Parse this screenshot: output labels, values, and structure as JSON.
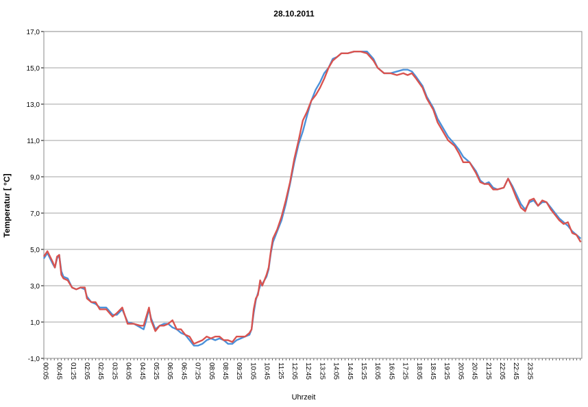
{
  "chart_data": {
    "type": "line",
    "title": "28.10.2011",
    "xlabel": "Uhrzeit",
    "ylabel": "Temperatur [ °C]",
    "ylim": [
      -1.0,
      17.0
    ],
    "yticks": [
      "-1,0",
      "1,0",
      "3,0",
      "5,0",
      "7,0",
      "9,0",
      "11,0",
      "13,0",
      "15,0",
      "17,0"
    ],
    "grid": true,
    "legend": "none",
    "x_tick_labels": [
      "00:05",
      "00:45",
      "01:25",
      "02:05",
      "02:45",
      "03:25",
      "04:05",
      "04:45",
      "05:25",
      "06:05",
      "06:45",
      "07:25",
      "08:05",
      "08:45",
      "09:25",
      "10:05",
      "10:45",
      "11:25",
      "12:05",
      "12:45",
      "13:25",
      "14:05",
      "14:45",
      "15:25",
      "16:05",
      "16:45",
      "17:25",
      "18:05",
      "18:45",
      "19:25",
      "20:05",
      "20:45",
      "21:25",
      "22:05",
      "22:45",
      "23:25"
    ],
    "x_range_hours": [
      0.0833,
      24.0
    ],
    "series": [
      {
        "color": "#4a90d9",
        "points": [
          [
            0.08,
            4.5
          ],
          [
            0.25,
            4.8
          ],
          [
            0.5,
            4.2
          ],
          [
            0.6,
            4.0
          ],
          [
            0.7,
            4.5
          ],
          [
            0.8,
            4.7
          ],
          [
            0.9,
            3.8
          ],
          [
            1.0,
            3.5
          ],
          [
            1.2,
            3.4
          ],
          [
            1.4,
            2.9
          ],
          [
            1.6,
            2.8
          ],
          [
            1.8,
            2.9
          ],
          [
            2.0,
            2.8
          ],
          [
            2.1,
            2.4
          ],
          [
            2.3,
            2.1
          ],
          [
            2.5,
            2.0
          ],
          [
            2.7,
            1.8
          ],
          [
            3.0,
            1.8
          ],
          [
            3.3,
            1.4
          ],
          [
            3.5,
            1.4
          ],
          [
            3.75,
            1.7
          ],
          [
            4.0,
            1.0
          ],
          [
            4.3,
            0.9
          ],
          [
            4.6,
            0.7
          ],
          [
            4.75,
            0.6
          ],
          [
            4.85,
            1.0
          ],
          [
            5.0,
            1.7
          ],
          [
            5.1,
            1.2
          ],
          [
            5.3,
            0.6
          ],
          [
            5.5,
            0.8
          ],
          [
            5.7,
            0.9
          ],
          [
            5.9,
            0.9
          ],
          [
            6.1,
            0.7
          ],
          [
            6.3,
            0.6
          ],
          [
            6.5,
            0.4
          ],
          [
            6.7,
            0.3
          ],
          [
            6.9,
            0.0
          ],
          [
            7.1,
            -0.3
          ],
          [
            7.3,
            -0.3
          ],
          [
            7.5,
            -0.2
          ],
          [
            7.7,
            0.0
          ],
          [
            7.9,
            0.1
          ],
          [
            8.1,
            0.0
          ],
          [
            8.3,
            0.1
          ],
          [
            8.5,
            0.0
          ],
          [
            8.7,
            -0.2
          ],
          [
            8.9,
            -0.2
          ],
          [
            9.1,
            0.0
          ],
          [
            9.3,
            0.1
          ],
          [
            9.5,
            0.2
          ],
          [
            9.7,
            0.3
          ],
          [
            9.8,
            0.6
          ],
          [
            9.9,
            1.5
          ],
          [
            10.0,
            2.2
          ],
          [
            10.1,
            2.6
          ],
          [
            10.2,
            3.0
          ],
          [
            10.3,
            3.1
          ],
          [
            10.5,
            3.5
          ],
          [
            10.6,
            3.9
          ],
          [
            10.7,
            4.8
          ],
          [
            10.8,
            5.4
          ],
          [
            11.0,
            6.0
          ],
          [
            11.2,
            6.6
          ],
          [
            11.4,
            7.5
          ],
          [
            11.6,
            8.6
          ],
          [
            11.8,
            9.8
          ],
          [
            12.0,
            10.8
          ],
          [
            12.2,
            11.5
          ],
          [
            12.4,
            12.4
          ],
          [
            12.6,
            13.2
          ],
          [
            12.8,
            13.8
          ],
          [
            13.0,
            14.2
          ],
          [
            13.2,
            14.7
          ],
          [
            13.4,
            15.0
          ],
          [
            13.6,
            15.5
          ],
          [
            13.8,
            15.6
          ],
          [
            14.0,
            15.8
          ],
          [
            14.3,
            15.8
          ],
          [
            14.6,
            15.9
          ],
          [
            14.9,
            15.9
          ],
          [
            15.2,
            15.9
          ],
          [
            15.5,
            15.5
          ],
          [
            15.7,
            15.0
          ],
          [
            16.0,
            14.7
          ],
          [
            16.3,
            14.7
          ],
          [
            16.6,
            14.8
          ],
          [
            16.9,
            14.9
          ],
          [
            17.1,
            14.9
          ],
          [
            17.3,
            14.8
          ],
          [
            17.5,
            14.5
          ],
          [
            17.8,
            14.0
          ],
          [
            18.0,
            13.4
          ],
          [
            18.3,
            12.8
          ],
          [
            18.5,
            12.2
          ],
          [
            18.8,
            11.6
          ],
          [
            19.0,
            11.2
          ],
          [
            19.3,
            10.8
          ],
          [
            19.5,
            10.5
          ],
          [
            19.7,
            10.1
          ],
          [
            20.0,
            9.8
          ],
          [
            20.3,
            9.3
          ],
          [
            20.5,
            8.8
          ],
          [
            20.7,
            8.6
          ],
          [
            20.9,
            8.7
          ],
          [
            21.1,
            8.4
          ],
          [
            21.3,
            8.3
          ],
          [
            21.6,
            8.4
          ],
          [
            21.8,
            8.9
          ],
          [
            22.0,
            8.5
          ],
          [
            22.2,
            8.0
          ],
          [
            22.4,
            7.5
          ],
          [
            22.6,
            7.2
          ],
          [
            22.8,
            7.6
          ],
          [
            23.0,
            7.7
          ],
          [
            23.2,
            7.4
          ],
          [
            23.4,
            7.6
          ],
          [
            23.6,
            7.6
          ],
          [
            23.8,
            7.3
          ],
          [
            24.0,
            7.0
          ],
          [
            24.2,
            6.7
          ],
          [
            24.4,
            6.5
          ],
          [
            24.6,
            6.3
          ],
          [
            24.8,
            6.0
          ],
          [
            25.0,
            5.8
          ],
          [
            25.2,
            5.6
          ]
        ]
      },
      {
        "color": "#d9534f",
        "points": [
          [
            0.08,
            4.6
          ],
          [
            0.25,
            4.9
          ],
          [
            0.5,
            4.3
          ],
          [
            0.6,
            4.0
          ],
          [
            0.7,
            4.6
          ],
          [
            0.8,
            4.7
          ],
          [
            0.9,
            3.6
          ],
          [
            1.0,
            3.4
          ],
          [
            1.2,
            3.3
          ],
          [
            1.4,
            2.9
          ],
          [
            1.6,
            2.8
          ],
          [
            1.8,
            2.9
          ],
          [
            2.0,
            2.9
          ],
          [
            2.1,
            2.3
          ],
          [
            2.3,
            2.1
          ],
          [
            2.5,
            2.1
          ],
          [
            2.7,
            1.7
          ],
          [
            3.0,
            1.7
          ],
          [
            3.3,
            1.3
          ],
          [
            3.5,
            1.5
          ],
          [
            3.75,
            1.8
          ],
          [
            4.0,
            0.9
          ],
          [
            4.3,
            0.9
          ],
          [
            4.6,
            0.8
          ],
          [
            4.75,
            0.8
          ],
          [
            4.85,
            1.2
          ],
          [
            5.0,
            1.8
          ],
          [
            5.1,
            1.1
          ],
          [
            5.3,
            0.5
          ],
          [
            5.5,
            0.8
          ],
          [
            5.7,
            0.8
          ],
          [
            5.9,
            0.9
          ],
          [
            6.1,
            1.1
          ],
          [
            6.3,
            0.6
          ],
          [
            6.5,
            0.6
          ],
          [
            6.7,
            0.3
          ],
          [
            6.9,
            0.2
          ],
          [
            7.1,
            -0.2
          ],
          [
            7.3,
            -0.1
          ],
          [
            7.5,
            0.0
          ],
          [
            7.7,
            0.2
          ],
          [
            7.9,
            0.1
          ],
          [
            8.1,
            0.2
          ],
          [
            8.3,
            0.2
          ],
          [
            8.5,
            0.0
          ],
          [
            8.7,
            0.0
          ],
          [
            8.9,
            -0.1
          ],
          [
            9.1,
            0.2
          ],
          [
            9.3,
            0.2
          ],
          [
            9.5,
            0.2
          ],
          [
            9.7,
            0.4
          ],
          [
            9.8,
            0.6
          ],
          [
            9.9,
            1.7
          ],
          [
            10.0,
            2.3
          ],
          [
            10.1,
            2.5
          ],
          [
            10.2,
            3.3
          ],
          [
            10.3,
            3.0
          ],
          [
            10.5,
            3.6
          ],
          [
            10.6,
            4.0
          ],
          [
            10.7,
            4.9
          ],
          [
            10.8,
            5.6
          ],
          [
            11.0,
            6.1
          ],
          [
            11.2,
            6.8
          ],
          [
            11.4,
            7.7
          ],
          [
            11.6,
            8.7
          ],
          [
            11.8,
            10.0
          ],
          [
            12.0,
            11.0
          ],
          [
            12.2,
            12.1
          ],
          [
            12.4,
            12.6
          ],
          [
            12.6,
            13.2
          ],
          [
            12.8,
            13.5
          ],
          [
            13.0,
            13.9
          ],
          [
            13.2,
            14.4
          ],
          [
            13.4,
            15.0
          ],
          [
            13.6,
            15.4
          ],
          [
            13.8,
            15.6
          ],
          [
            14.0,
            15.8
          ],
          [
            14.3,
            15.8
          ],
          [
            14.6,
            15.9
          ],
          [
            14.9,
            15.9
          ],
          [
            15.2,
            15.8
          ],
          [
            15.5,
            15.4
          ],
          [
            15.7,
            15.0
          ],
          [
            16.0,
            14.7
          ],
          [
            16.3,
            14.7
          ],
          [
            16.6,
            14.6
          ],
          [
            16.9,
            14.7
          ],
          [
            17.1,
            14.6
          ],
          [
            17.3,
            14.7
          ],
          [
            17.5,
            14.4
          ],
          [
            17.8,
            13.9
          ],
          [
            18.0,
            13.3
          ],
          [
            18.3,
            12.7
          ],
          [
            18.5,
            12.0
          ],
          [
            18.8,
            11.4
          ],
          [
            19.0,
            11.0
          ],
          [
            19.3,
            10.7
          ],
          [
            19.5,
            10.3
          ],
          [
            19.7,
            9.8
          ],
          [
            20.0,
            9.8
          ],
          [
            20.3,
            9.2
          ],
          [
            20.5,
            8.7
          ],
          [
            20.7,
            8.6
          ],
          [
            20.9,
            8.6
          ],
          [
            21.1,
            8.3
          ],
          [
            21.3,
            8.3
          ],
          [
            21.6,
            8.4
          ],
          [
            21.8,
            8.9
          ],
          [
            22.0,
            8.4
          ],
          [
            22.2,
            7.8
          ],
          [
            22.4,
            7.3
          ],
          [
            22.6,
            7.1
          ],
          [
            22.8,
            7.7
          ],
          [
            23.0,
            7.8
          ],
          [
            23.2,
            7.4
          ],
          [
            23.4,
            7.7
          ],
          [
            23.6,
            7.6
          ],
          [
            23.8,
            7.2
          ],
          [
            24.0,
            6.9
          ],
          [
            24.2,
            6.6
          ],
          [
            24.4,
            6.4
          ],
          [
            24.6,
            6.5
          ],
          [
            24.8,
            5.9
          ],
          [
            25.0,
            5.8
          ],
          [
            25.2,
            5.4
          ]
        ]
      }
    ]
  }
}
